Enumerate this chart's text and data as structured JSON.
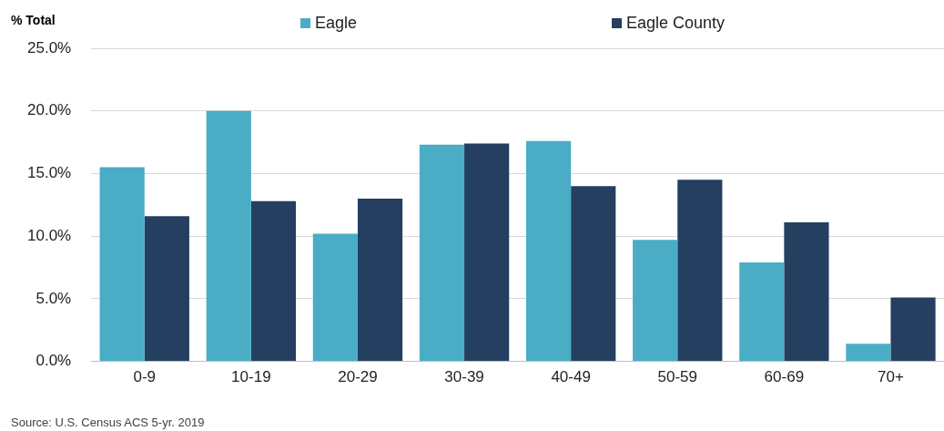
{
  "chart_data": {
    "type": "bar",
    "ylabel": "% Total",
    "categories": [
      "0-9",
      "10-19",
      "20-29",
      "30-39",
      "40-49",
      "50-59",
      "60-69",
      "70+"
    ],
    "series": [
      {
        "name": "Eagle",
        "color": "#4bacc6",
        "values": [
          15.5,
          20.0,
          10.2,
          17.3,
          17.6,
          9.7,
          7.9,
          1.4
        ]
      },
      {
        "name": "Eagle County",
        "color": "#243f60",
        "values": [
          11.6,
          12.8,
          13.0,
          17.4,
          14.0,
          14.5,
          11.1,
          5.1
        ]
      }
    ],
    "ylim": [
      0,
      25
    ],
    "yticks": [
      {
        "value": 0,
        "label": "0.0%"
      },
      {
        "value": 5,
        "label": "5.0%"
      },
      {
        "value": 10,
        "label": "10.0%"
      },
      {
        "value": 15,
        "label": "15.0%"
      },
      {
        "value": 20,
        "label": "20.0%"
      },
      {
        "value": 25,
        "label": "25.0%"
      }
    ],
    "grid": "y",
    "legend": "top",
    "annotations": [
      "Source: U.S. Census ACS 5-yr. 2019"
    ]
  }
}
